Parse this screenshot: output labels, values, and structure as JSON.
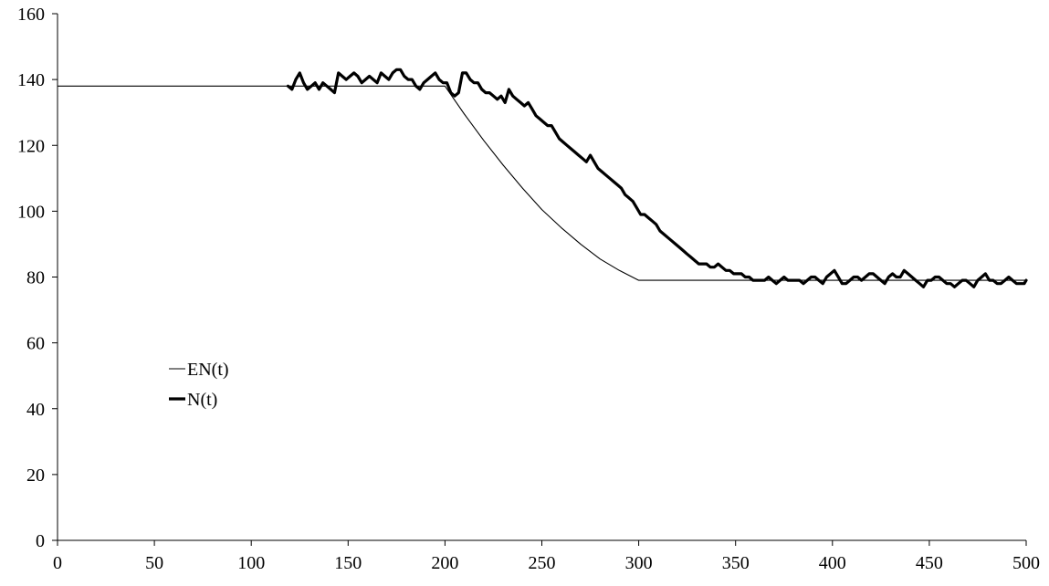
{
  "chart_data": {
    "type": "line",
    "title": "",
    "xlabel": "",
    "ylabel": "",
    "xlim": [
      0,
      500
    ],
    "ylim": [
      0,
      160
    ],
    "x_ticks": [
      0,
      50,
      100,
      150,
      200,
      250,
      300,
      350,
      400,
      450,
      500
    ],
    "y_ticks": [
      0,
      20,
      40,
      60,
      80,
      100,
      120,
      140,
      160
    ],
    "grid": false,
    "legend": {
      "position": "left-middle"
    },
    "series": [
      {
        "name": "EN(t)",
        "style": "thin",
        "color": "#000000",
        "x": [
          0,
          120,
          200,
          210,
          220,
          230,
          240,
          250,
          260,
          270,
          280,
          290,
          300,
          350,
          400,
          450,
          500
        ],
        "y": [
          138,
          138,
          138,
          129.5,
          121.5,
          114,
          107,
          100.5,
          95,
          90,
          85.5,
          82,
          79,
          79,
          79,
          79,
          79
        ]
      },
      {
        "name": "N(t)",
        "style": "thick",
        "color": "#000000",
        "x": [
          119,
          121,
          123,
          125,
          127,
          129,
          131,
          133,
          135,
          137,
          139,
          141,
          143,
          145,
          147,
          149,
          151,
          153,
          155,
          157,
          159,
          161,
          163,
          165,
          167,
          169,
          171,
          173,
          175,
          177,
          179,
          181,
          183,
          185,
          187,
          189,
          191,
          193,
          195,
          197,
          199,
          201,
          203,
          205,
          207,
          209,
          211,
          213,
          215,
          217,
          219,
          221,
          223,
          225,
          227,
          229,
          231,
          233,
          235,
          237,
          239,
          241,
          243,
          245,
          247,
          249,
          251,
          253,
          255,
          257,
          259,
          261,
          263,
          265,
          267,
          269,
          271,
          273,
          275,
          277,
          279,
          281,
          283,
          285,
          287,
          289,
          291,
          293,
          295,
          297,
          299,
          301,
          303,
          305,
          307,
          309,
          311,
          313,
          315,
          317,
          319,
          321,
          323,
          325,
          327,
          329,
          331,
          333,
          335,
          337,
          339,
          341,
          343,
          345,
          347,
          349,
          351,
          353,
          355,
          357,
          359,
          361,
          363,
          365,
          367,
          369,
          371,
          373,
          375,
          377,
          379,
          381,
          383,
          385,
          387,
          389,
          391,
          393,
          395,
          397,
          399,
          401,
          403,
          405,
          407,
          409,
          411,
          413,
          415,
          417,
          419,
          421,
          423,
          425,
          427,
          429,
          431,
          433,
          435,
          437,
          439,
          441,
          443,
          445,
          447,
          449,
          451,
          453,
          455,
          457,
          459,
          461,
          463,
          465,
          467,
          469,
          471,
          473,
          475,
          477,
          479,
          481,
          483,
          485,
          487,
          489,
          491,
          493,
          495,
          497,
          499,
          500
        ],
        "y": [
          138,
          137,
          140,
          142,
          139,
          137,
          138,
          139,
          137,
          139,
          138,
          137,
          136,
          142,
          141,
          140,
          141,
          142,
          141,
          139,
          140,
          141,
          140,
          139,
          142,
          141,
          140,
          142,
          143,
          143,
          141,
          140,
          140,
          138,
          137,
          139,
          140,
          141,
          142,
          140,
          139,
          139,
          136,
          135,
          136,
          142,
          142,
          140,
          139,
          139,
          137,
          136,
          136,
          135,
          134,
          135,
          133,
          137,
          135,
          134,
          133,
          132,
          133,
          131,
          129,
          128,
          127,
          126,
          126,
          124,
          122,
          121,
          120,
          119,
          118,
          117,
          116,
          115,
          117,
          115,
          113,
          112,
          111,
          110,
          109,
          108,
          107,
          105,
          104,
          103,
          101,
          99,
          99,
          98,
          97,
          96,
          94,
          93,
          92,
          91,
          90,
          89,
          88,
          87,
          86,
          85,
          84,
          84,
          84,
          83,
          83,
          84,
          83,
          82,
          82,
          81,
          81,
          81,
          80,
          80,
          79,
          79,
          79,
          79,
          80,
          79,
          78,
          79,
          80,
          79,
          79,
          79,
          79,
          78,
          79,
          80,
          80,
          79,
          78,
          80,
          81,
          82,
          80,
          78,
          78,
          79,
          80,
          80,
          79,
          80,
          81,
          81,
          80,
          79,
          78,
          80,
          81,
          80,
          80,
          82,
          81,
          80,
          79,
          78,
          77,
          79,
          79,
          80,
          80,
          79,
          78,
          78,
          77,
          78,
          79,
          79,
          78,
          77,
          79,
          80,
          81,
          79,
          79,
          78,
          78,
          79,
          80,
          79,
          78,
          78,
          78,
          79
        ]
      }
    ]
  }
}
